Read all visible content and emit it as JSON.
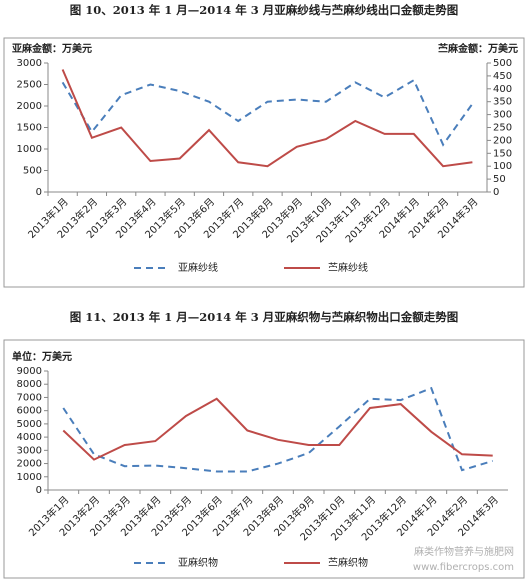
{
  "chart_data": [
    {
      "type": "line",
      "title": "图 10、2013 年 1 月—2014 年 3 月亚麻纱线与苎麻纱线出口金额走势图",
      "ylabel": "亚麻金额：万美元",
      "y2label": "苎麻金额：万美元",
      "categories": [
        "2013年1月",
        "2013年2月",
        "2013年3月",
        "2013年4月",
        "2013年5月",
        "2013年6月",
        "2013年7月",
        "2013年8月",
        "2013年9月",
        "2013年10月",
        "2013年11月",
        "2013年12月",
        "2014年1月",
        "2014年2月",
        "2014年3月"
      ],
      "series": [
        {
          "name": "亚麻纱线",
          "color": "#4a7ebb",
          "line_style": "dashed",
          "values": [
            2550,
            1400,
            2250,
            2500,
            2350,
            2100,
            1650,
            2100,
            2150,
            2100,
            2550,
            2200,
            2600,
            1100,
            2050
          ]
        },
        {
          "name": "苎麻纱线",
          "color": "#be4b48",
          "line_style": "solid",
          "axis": "y2",
          "values": [
            475,
            210,
            250,
            120,
            130,
            240,
            115,
            100,
            175,
            205,
            275,
            225,
            225,
            100,
            115
          ]
        }
      ],
      "ylim": [
        0,
        3000
      ],
      "yticks": [
        0,
        500,
        1000,
        1500,
        2000,
        2500,
        3000
      ],
      "y2lim": [
        0,
        500
      ],
      "y2ticks": [
        0,
        50,
        100,
        150,
        200,
        250,
        300,
        350,
        400,
        450,
        500
      ],
      "legend": "bottom"
    },
    {
      "type": "line",
      "title": "图 11、2013 年 1 月—2014 年 3 月亚麻织物与苎麻织物出口金额走势图",
      "ylabel": "单位：万美元",
      "categories": [
        "2013年1月",
        "2013年2月",
        "2013年3月",
        "2013年4月",
        "2013年5月",
        "2013年6月",
        "2013年7月",
        "2013年8月",
        "2013年9月",
        "2013年10月",
        "2013年11月",
        "2013年12月",
        "2014年1月",
        "2014年2月",
        "2014年3月"
      ],
      "series": [
        {
          "name": "亚麻织物",
          "color": "#4a7ebb",
          "line_style": "dashed",
          "values": [
            6200,
            2700,
            1800,
            1850,
            1650,
            1400,
            1400,
            2000,
            2800,
            4800,
            6900,
            6800,
            7700,
            1500,
            2200
          ]
        },
        {
          "name": "苎麻织物",
          "color": "#be4b48",
          "line_style": "solid",
          "values": [
            4500,
            2300,
            3400,
            3700,
            5600,
            6900,
            4500,
            3800,
            3400,
            3400,
            6200,
            6500,
            4400,
            2700,
            2600
          ]
        }
      ],
      "ylim": [
        0,
        9000
      ],
      "yticks": [
        0,
        1000,
        2000,
        3000,
        4000,
        5000,
        6000,
        7000,
        8000,
        9000
      ],
      "legend": "bottom"
    }
  ],
  "watermark": [
    "麻类作物营养与施肥网",
    "www.fibercrops.com"
  ]
}
